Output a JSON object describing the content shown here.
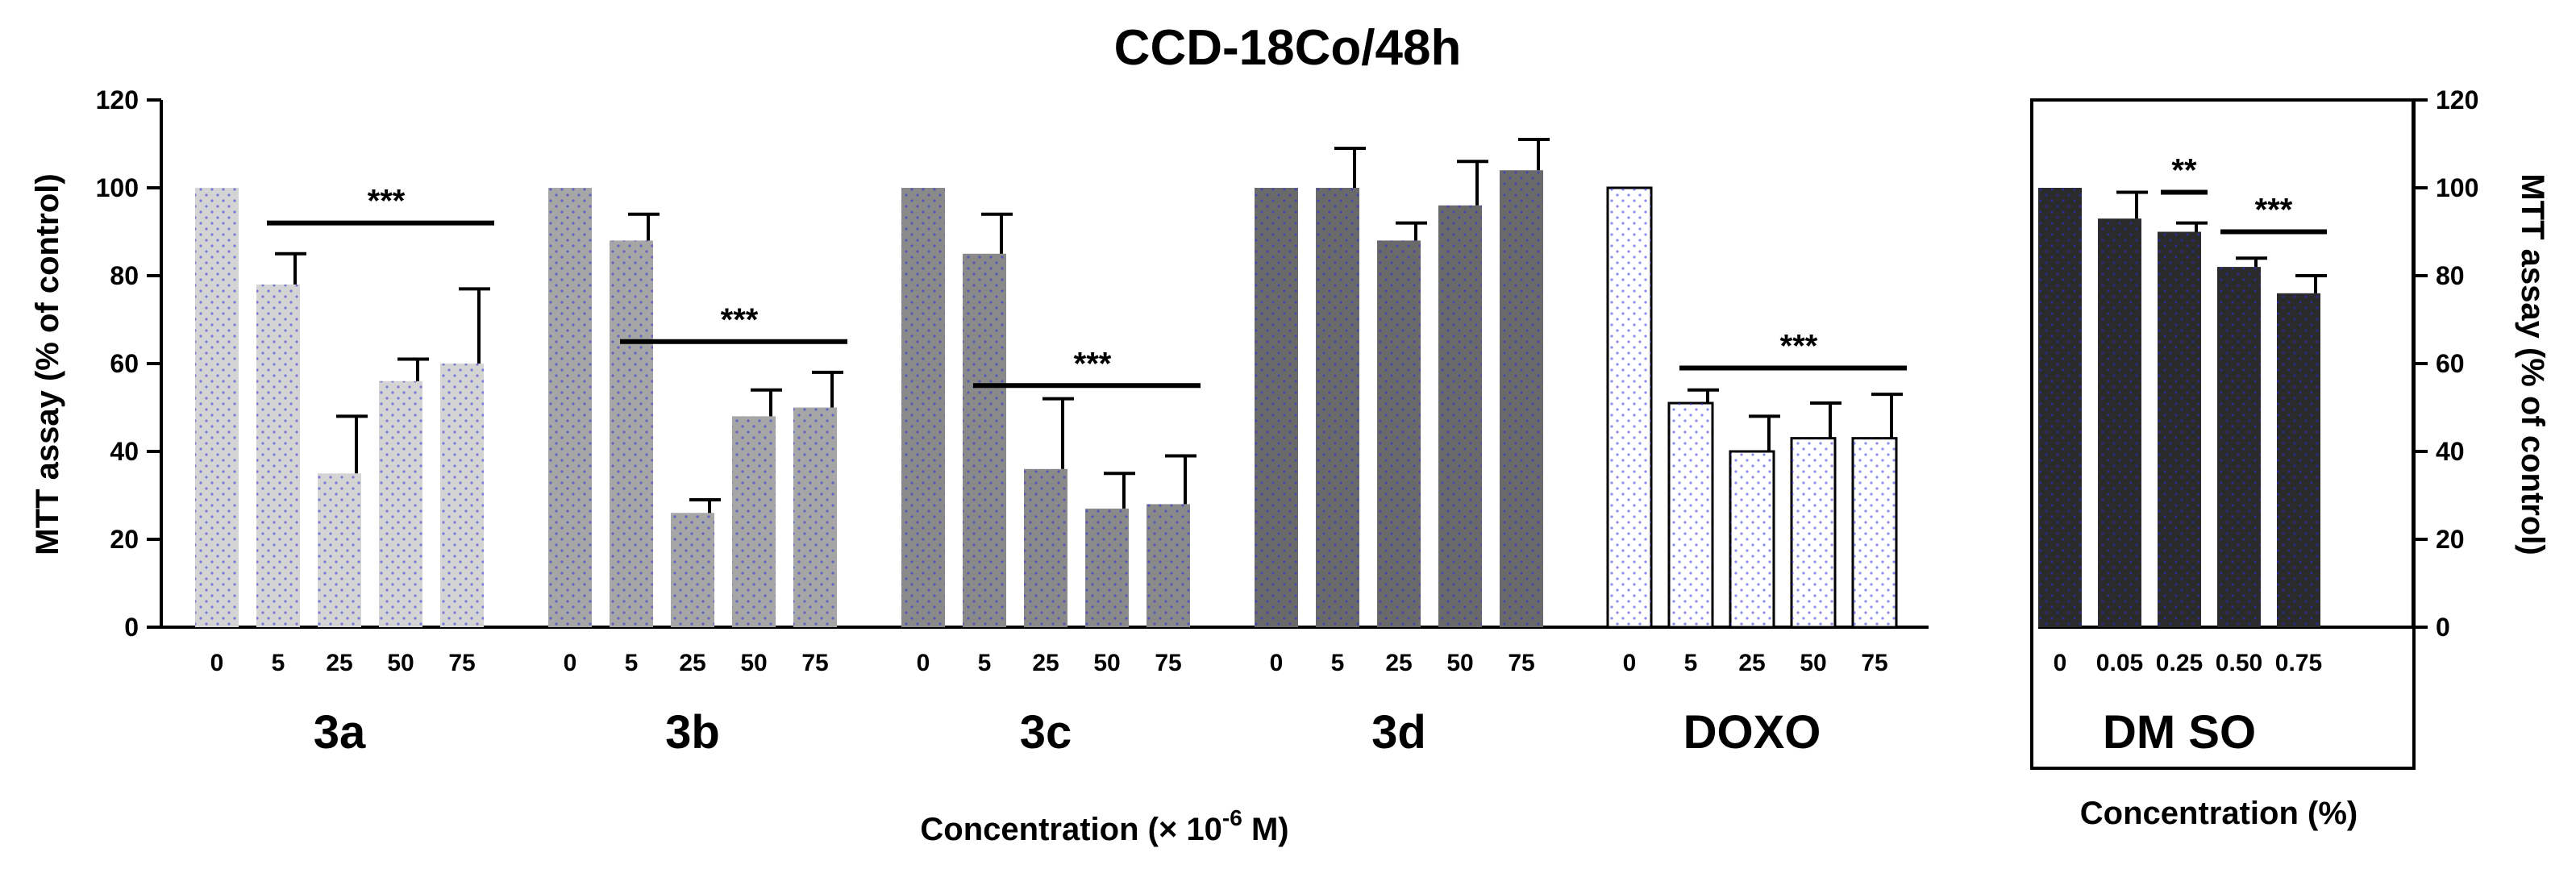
{
  "chart_data": {
    "type": "bar",
    "title": "CCD-18Co/48h",
    "ylabel_left": "MTT assay (% of control)",
    "ylabel_right": "MTT assay (% of control)",
    "xlabel_main": "Concentration (× 10",
    "xlabel_main_exponent": "-6",
    "xlabel_main_unit": " M)",
    "xlabel_dmso": "Concentration (%)",
    "ylim": [
      0,
      120
    ],
    "yticks": [
      "0",
      "20",
      "40",
      "60",
      "80",
      "100",
      "120"
    ],
    "panels": [
      {
        "name": "main",
        "groups": [
          {
            "name": "3a",
            "categories": [
              "0",
              "5",
              "25",
              "50",
              "75"
            ],
            "values": [
              100,
              78,
              35,
              56,
              60
            ],
            "errors": [
              0,
              7,
              13,
              5,
              17
            ],
            "color": "#d4d4d4",
            "significance": "***",
            "sig_y": 92
          },
          {
            "name": "3b",
            "categories": [
              "0",
              "5",
              "25",
              "50",
              "75"
            ],
            "values": [
              100,
              88,
              26,
              48,
              50
            ],
            "errors": [
              0,
              6,
              3,
              6,
              8
            ],
            "color": "#a6a6a6",
            "significance": "***",
            "sig_y": 65
          },
          {
            "name": "3c",
            "categories": [
              "0",
              "5",
              "25",
              "50",
              "75"
            ],
            "values": [
              100,
              85,
              36,
              27,
              28
            ],
            "errors": [
              0,
              9,
              16,
              8,
              11
            ],
            "color": "#8a8a8a",
            "significance": "***",
            "sig_y": 55
          },
          {
            "name": "3d",
            "categories": [
              "0",
              "5",
              "25",
              "50",
              "75"
            ],
            "values": [
              100,
              100,
              88,
              96,
              104
            ],
            "errors": [
              0,
              9,
              4,
              10,
              7
            ],
            "color": "#6a6a6a",
            "significance": "",
            "sig_y": 0
          },
          {
            "name": "DOXO",
            "categories": [
              "0",
              "5",
              "25",
              "50",
              "75"
            ],
            "values": [
              100,
              51,
              40,
              43,
              43
            ],
            "errors": [
              0,
              3,
              8,
              8,
              10
            ],
            "color": "#ffffff",
            "significance": "***",
            "sig_y": 59
          }
        ]
      },
      {
        "name": "dmso",
        "groups": [
          {
            "name": "DM SO",
            "categories": [
              "0",
              "0.05",
              "0.25",
              "0.50",
              "0.75"
            ],
            "values": [
              100,
              93,
              90,
              82,
              76
            ],
            "errors": [
              0,
              6,
              2,
              2,
              4
            ],
            "color": "#2b2b2b",
            "significance": "",
            "sig_y": 0
          }
        ],
        "brackets": [
          {
            "label": "**",
            "from": 2,
            "to": 2,
            "y": 99
          },
          {
            "label": "***",
            "from": 3,
            "to": 4,
            "y": 90
          }
        ]
      }
    ]
  }
}
